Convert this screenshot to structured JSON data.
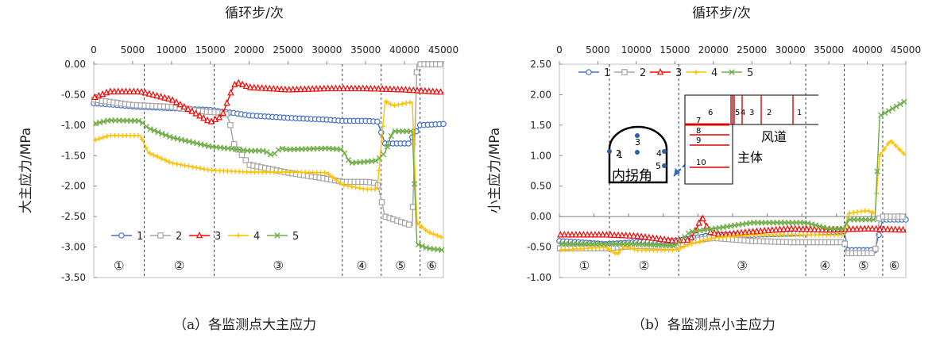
{
  "figure": {
    "caption_a": "（a）各监测点大主应力",
    "caption_b": "（b）各监测点小主应力"
  },
  "chart_data": [
    {
      "type": "line",
      "title": "",
      "x_title": "循环步/次",
      "xlabel": "循环步/次",
      "ylabel": "大主应力/MPa",
      "xlim": [
        0,
        45000
      ],
      "ylim": [
        -3.5,
        0
      ],
      "xticks": [
        0,
        5000,
        10000,
        15000,
        20000,
        25000,
        30000,
        35000,
        40000,
        45000
      ],
      "yticks": [
        "0.00",
        "-0.50",
        "-1.00",
        "-1.50",
        "-2.00",
        "-2.50",
        "-3.00",
        "-3.50"
      ],
      "grid": false,
      "legend_position": "bottom-left",
      "stage_dividers": [
        6500,
        15500,
        32000,
        37000,
        42000
      ],
      "stage_labels": [
        "①",
        "②",
        "③",
        "④",
        "⑤",
        "⑥"
      ],
      "series": [
        {
          "name": "1",
          "color": "#4472C4",
          "marker": "circle",
          "x": [
            0,
            6000,
            15000,
            16500,
            18000,
            20000,
            25000,
            30000,
            32000,
            35000,
            36500,
            37500,
            40500,
            42000,
            45000
          ],
          "y": [
            -0.64,
            -0.7,
            -0.75,
            -0.78,
            -0.8,
            -0.84,
            -0.88,
            -0.91,
            -0.93,
            -0.93,
            -0.94,
            -1.3,
            -1.3,
            -1.0,
            -0.98
          ]
        },
        {
          "name": "2",
          "color": "#A5A5A5",
          "marker": "square",
          "x": [
            0,
            5000,
            10000,
            14500,
            17000,
            17500,
            18000,
            20000,
            25000,
            30000,
            32000,
            35000,
            36500,
            37500,
            41000,
            41600,
            45000
          ],
          "y": [
            -0.58,
            -0.67,
            -0.7,
            -0.78,
            -0.8,
            -0.95,
            -1.3,
            -1.65,
            -1.78,
            -1.88,
            -1.93,
            -1.93,
            -1.95,
            -2.5,
            -2.65,
            0.0,
            0.0
          ]
        },
        {
          "name": "3",
          "color": "#FF0000",
          "marker": "triangle",
          "x": [
            0,
            2000,
            6000,
            10000,
            13000,
            15000,
            16500,
            18000,
            18500,
            20000,
            25000,
            30000,
            35000,
            40000,
            45000
          ],
          "y": [
            -0.55,
            -0.45,
            -0.45,
            -0.58,
            -0.8,
            -0.95,
            -0.85,
            -0.35,
            -0.3,
            -0.38,
            -0.42,
            -0.4,
            -0.4,
            -0.42,
            -0.46
          ]
        },
        {
          "name": "4",
          "color": "#FFC000",
          "marker": "cross",
          "x": [
            0,
            2000,
            6000,
            7000,
            10000,
            15000,
            20000,
            25000,
            30000,
            32000,
            35000,
            36500,
            37500,
            38500,
            41000,
            41600,
            43000,
            45000
          ],
          "y": [
            -1.25,
            -1.17,
            -1.17,
            -1.45,
            -1.62,
            -1.74,
            -1.77,
            -1.77,
            -1.78,
            -1.98,
            -2.05,
            -2.05,
            -0.6,
            -0.68,
            -0.62,
            -2.6,
            -2.75,
            -2.85
          ]
        },
        {
          "name": "5",
          "color": "#70AD47",
          "marker": "x",
          "x": [
            0,
            2000,
            6000,
            7000,
            10000,
            15000,
            20000,
            22000,
            23000,
            24000,
            25000,
            30000,
            32000,
            33000,
            35000,
            36500,
            37500,
            38500,
            41000,
            41600,
            43000,
            45000
          ],
          "y": [
            -0.98,
            -0.92,
            -0.93,
            -1.05,
            -1.2,
            -1.35,
            -1.42,
            -1.42,
            -1.5,
            -1.38,
            -1.4,
            -1.38,
            -1.4,
            -1.62,
            -1.6,
            -1.58,
            -1.45,
            -1.1,
            -1.1,
            -2.95,
            -3.02,
            -3.05
          ]
        }
      ]
    },
    {
      "type": "line",
      "title": "",
      "x_title": "循环步/次",
      "xlabel": "循环步/次",
      "ylabel": "小主应力/MPa",
      "xlim": [
        0,
        45000
      ],
      "ylim": [
        -1.0,
        2.5
      ],
      "xticks": [
        0,
        5000,
        10000,
        15000,
        20000,
        25000,
        30000,
        35000,
        40000,
        45000
      ],
      "yticks": [
        "2.50",
        "2.00",
        "1.50",
        "1.00",
        "0.50",
        "0.00",
        "-0.50",
        "-1.00"
      ],
      "grid": false,
      "legend_position": "top-left",
      "stage_dividers": [
        6500,
        15500,
        32000,
        37000,
        42000
      ],
      "stage_labels": [
        "①",
        "②",
        "③",
        "④",
        "⑤",
        "⑥"
      ],
      "inset_labels": {
        "tunnel_points": [
          "1",
          "2",
          "3",
          "4",
          "5"
        ],
        "inner_corner": "内拐角",
        "airway": "风道",
        "main": "主体",
        "row_labels": [
          "6",
          "5",
          "4",
          "3",
          "2",
          "1"
        ],
        "col_labels": [
          "7",
          "8",
          "9",
          "10"
        ]
      },
      "series": [
        {
          "name": "1",
          "color": "#4472C4",
          "marker": "circle",
          "x": [
            0,
            6000,
            10000,
            15000,
            20000,
            25000,
            30000,
            35000,
            37000,
            37500,
            41000,
            42000,
            45000
          ],
          "y": [
            -0.4,
            -0.45,
            -0.42,
            -0.4,
            -0.3,
            -0.3,
            -0.28,
            -0.25,
            -0.24,
            -0.55,
            -0.55,
            -0.05,
            -0.05
          ]
        },
        {
          "name": "2",
          "color": "#A5A5A5",
          "marker": "square",
          "x": [
            0,
            6000,
            10000,
            15000,
            17000,
            20000,
            25000,
            30000,
            35000,
            37000,
            37500,
            41000,
            41600,
            45000
          ],
          "y": [
            -0.52,
            -0.52,
            -0.48,
            -0.5,
            -0.4,
            -0.35,
            -0.4,
            -0.42,
            -0.42,
            -0.42,
            -0.6,
            -0.6,
            0.0,
            0.0
          ]
        },
        {
          "name": "3",
          "color": "#FF0000",
          "marker": "triangle",
          "x": [
            0,
            6000,
            10000,
            15000,
            17000,
            18000,
            18500,
            19500,
            21000,
            25000,
            30000,
            35000,
            40000,
            45000
          ],
          "y": [
            -0.3,
            -0.3,
            -0.32,
            -0.4,
            -0.38,
            -0.15,
            0.0,
            -0.25,
            -0.3,
            -0.25,
            -0.2,
            -0.22,
            -0.2,
            -0.22
          ]
        },
        {
          "name": "4",
          "color": "#FFC000",
          "marker": "cross",
          "x": [
            0,
            6000,
            7500,
            8500,
            10000,
            15000,
            17000,
            20000,
            25000,
            30000,
            32000,
            35000,
            37000,
            37500,
            40000,
            41000,
            41600,
            43000,
            45000
          ],
          "y": [
            -0.55,
            -0.5,
            -0.62,
            -0.48,
            -0.55,
            -0.55,
            -0.45,
            -0.35,
            -0.3,
            -0.3,
            -0.3,
            -0.3,
            -0.3,
            0.05,
            0.1,
            0.05,
            1.0,
            1.25,
            1.0
          ]
        },
        {
          "name": "5",
          "color": "#70AD47",
          "marker": "x",
          "x": [
            0,
            6000,
            10000,
            15000,
            17000,
            20000,
            25000,
            30000,
            32000,
            35000,
            37000,
            37500,
            41000,
            41600,
            43000,
            45000
          ],
          "y": [
            -0.45,
            -0.45,
            -0.45,
            -0.48,
            -0.25,
            -0.2,
            -0.1,
            -0.1,
            -0.1,
            -0.2,
            -0.2,
            -0.05,
            -0.05,
            1.65,
            1.75,
            1.9
          ]
        }
      ]
    }
  ]
}
